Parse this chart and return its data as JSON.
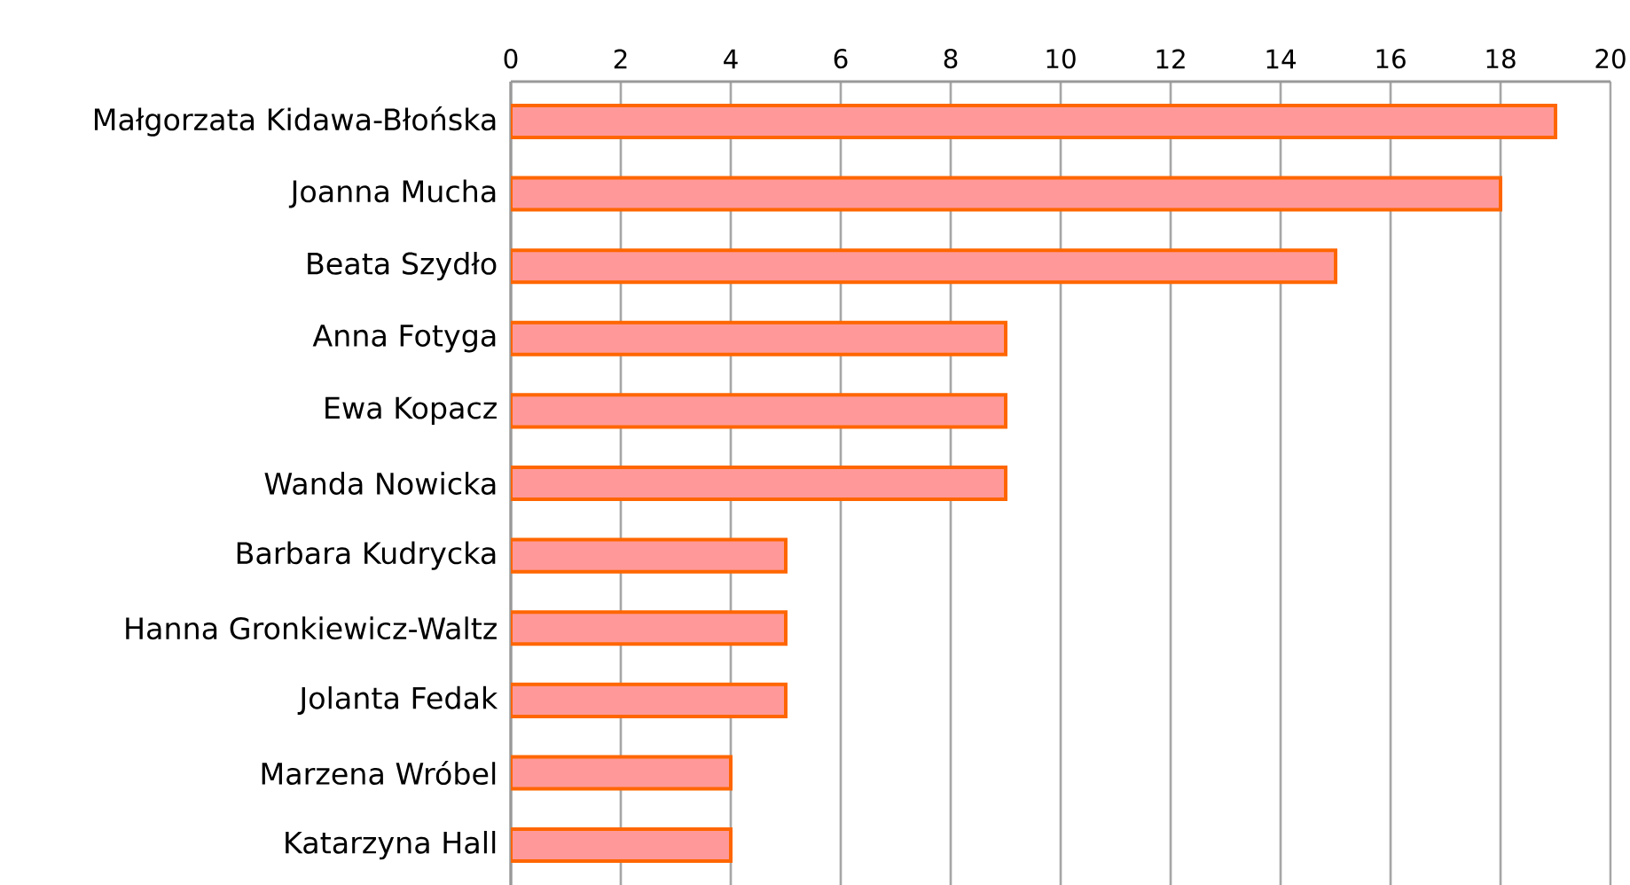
{
  "chart_data": {
    "type": "bar",
    "orientation": "horizontal",
    "categories": [
      "Małgorzata Kidawa-Błońska",
      "Joanna Mucha",
      "Beata Szydło",
      "Anna Fotyga",
      "Ewa Kopacz",
      "Wanda Nowicka",
      "Barbara Kudrycka",
      "Hanna Gronkiewicz-Waltz",
      "Jolanta Fedak",
      "Marzena Wróbel",
      "Katarzyna Hall"
    ],
    "values": [
      19,
      18,
      15,
      9,
      9,
      9,
      5,
      5,
      5,
      4,
      4
    ],
    "color": "#ff9999",
    "xlim": [
      0,
      20
    ],
    "xticks": [
      0,
      2,
      4,
      6,
      8,
      10,
      12,
      14,
      16,
      18,
      20
    ],
    "grid": "x"
  }
}
